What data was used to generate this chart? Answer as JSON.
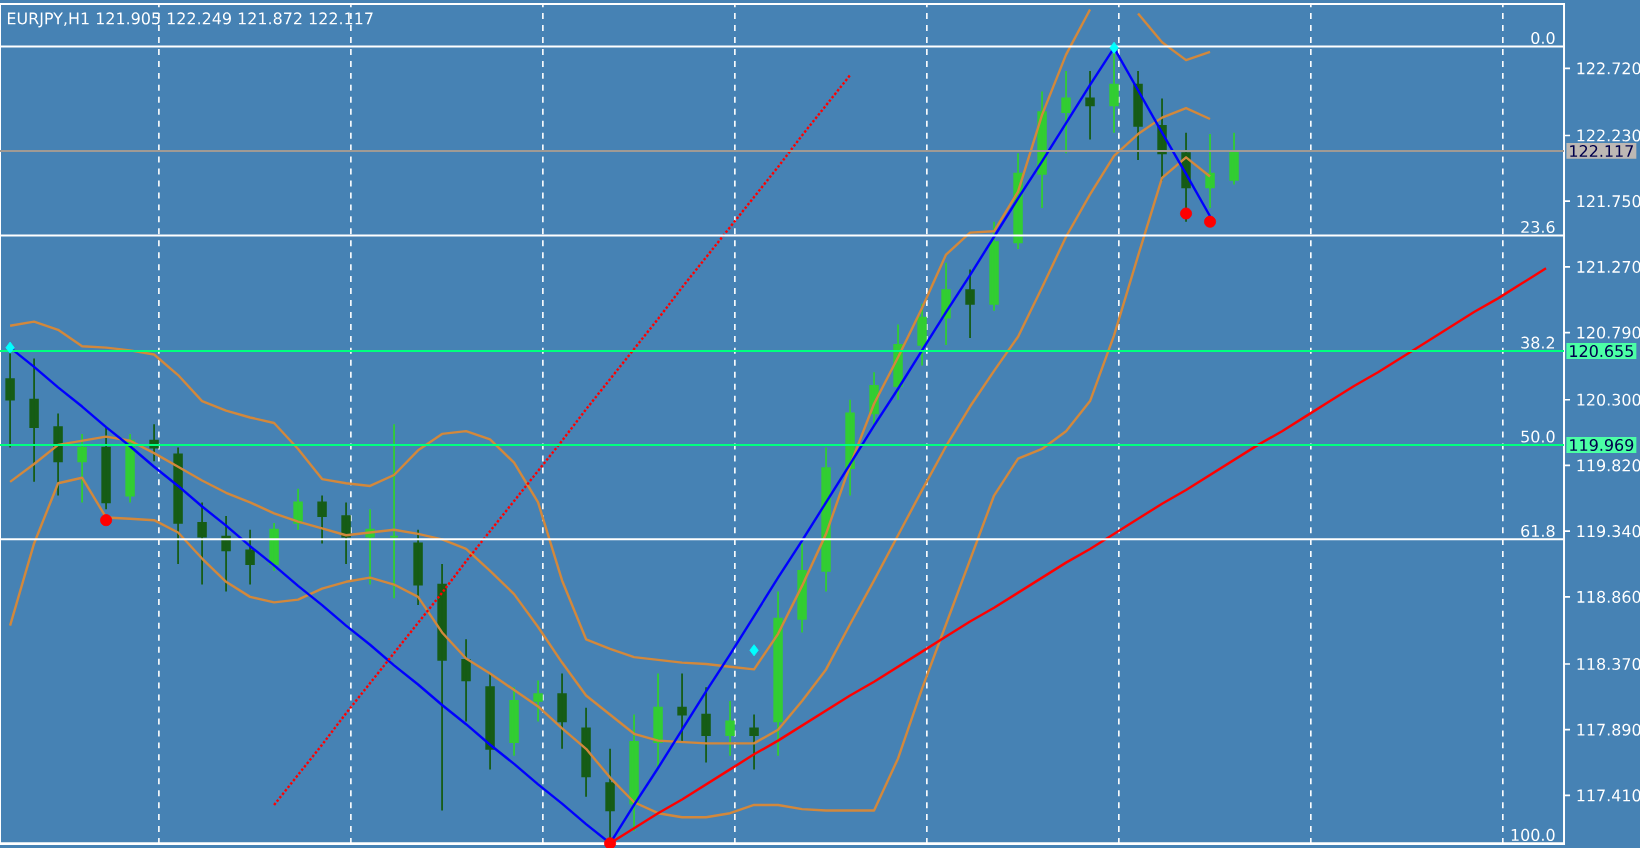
{
  "chart_data": {
    "type": "candlestick",
    "title": "EURJPY,H1  121.905 122.249 121.872 122.117",
    "colors": [
      "#165c16",
      "#165c16",
      "#165c16",
      "#32cd32",
      "#165c16",
      "#32cd32",
      "#165c16",
      "#165c16",
      "#165c16",
      "#165c16",
      "#165c16",
      "#32cd32",
      "#32cd32",
      "#165c16",
      "#165c16",
      "#32cd32",
      "#32cd32",
      "#165c16",
      "#165c16",
      "#165c16",
      "#165c16",
      "#32cd32",
      "#32cd32",
      "#165c16",
      "#165c16",
      "#165c16",
      "#32cd32",
      "#32cd32",
      "#165c16",
      "#165c16",
      "#32cd32",
      "#165c16",
      "#32cd32",
      "#32cd32",
      "#32cd32",
      "#32cd32",
      "#32cd32",
      "#32cd32",
      "#32cd32",
      "#32cd32",
      "#165c16",
      "#32cd32",
      "#32cd32",
      "#32cd32",
      "#32cd32",
      "#165c16",
      "#32cd32",
      "#165c16",
      "#165c16",
      "#165c16",
      "#32cd32",
      "#32cd32",
      null,
      null,
      null,
      null,
      null,
      null,
      null,
      null,
      null,
      null,
      null,
      null,
      null
    ],
    "categories": [
      null,
      null,
      null,
      null,
      null,
      null,
      null,
      null,
      null,
      null,
      null,
      null,
      null,
      null,
      null,
      null,
      null,
      null,
      null,
      null,
      null,
      null,
      null,
      null,
      null,
      null,
      null,
      null,
      null,
      null,
      null,
      null,
      null,
      null,
      null,
      null,
      null,
      null,
      null,
      null,
      null,
      null,
      null,
      null,
      null,
      null,
      null,
      null,
      null,
      null,
      null,
      null,
      null,
      null,
      null,
      null,
      null,
      null,
      null,
      null,
      null,
      null,
      null,
      null,
      null
    ],
    "ohlc": [
      [
        120.45,
        120.69,
        119.95,
        120.3
      ],
      [
        120.3,
        120.6,
        119.7,
        120.1
      ],
      [
        120.1,
        120.2,
        119.6,
        119.85
      ],
      [
        119.85,
        120.05,
        119.55,
        119.95
      ],
      [
        119.95,
        120.1,
        119.5,
        119.55
      ],
      [
        119.6,
        120.05,
        119.55,
        120.0
      ],
      [
        120.0,
        120.12,
        119.85,
        119.95
      ],
      [
        119.9,
        119.95,
        119.1,
        119.4
      ],
      [
        119.4,
        119.55,
        118.95,
        119.3
      ],
      [
        119.3,
        119.45,
        118.9,
        119.2
      ],
      [
        119.2,
        119.35,
        118.95,
        119.1
      ],
      [
        119.1,
        119.4,
        119.05,
        119.35
      ],
      [
        119.4,
        119.65,
        119.35,
        119.55
      ],
      [
        119.55,
        119.6,
        119.25,
        119.45
      ],
      [
        119.45,
        119.55,
        119.1,
        119.3
      ],
      [
        119.3,
        119.5,
        118.95,
        119.35
      ],
      [
        119.3,
        120.12,
        118.85,
        119.3
      ],
      [
        119.25,
        119.35,
        118.8,
        118.95
      ],
      [
        118.95,
        119.1,
        117.3,
        118.4
      ],
      [
        118.4,
        118.55,
        117.95,
        118.25
      ],
      [
        118.2,
        118.3,
        117.6,
        117.75
      ],
      [
        117.8,
        118.2,
        117.7,
        118.1
      ],
      [
        118.1,
        118.25,
        117.95,
        118.15
      ],
      [
        118.15,
        118.3,
        117.75,
        117.95
      ],
      [
        117.9,
        118.05,
        117.4,
        117.55
      ],
      [
        117.5,
        117.75,
        117.06,
        117.3
      ],
      [
        117.35,
        118.0,
        117.15,
        117.8
      ],
      [
        117.8,
        118.3,
        117.6,
        118.05
      ],
      [
        118.05,
        118.3,
        117.8,
        118.0
      ],
      [
        118.0,
        118.2,
        117.65,
        117.85
      ],
      [
        117.85,
        118.1,
        117.7,
        117.95
      ],
      [
        117.9,
        118.0,
        117.6,
        117.85
      ],
      [
        117.95,
        118.9,
        117.7,
        118.7
      ],
      [
        118.7,
        119.25,
        118.6,
        119.05
      ],
      [
        119.05,
        119.95,
        118.9,
        119.8
      ],
      [
        119.8,
        120.3,
        119.6,
        120.2
      ],
      [
        120.2,
        120.5,
        120.1,
        120.4
      ],
      [
        120.4,
        120.85,
        120.3,
        120.7
      ],
      [
        120.7,
        121.0,
        120.55,
        120.9
      ],
      [
        120.9,
        121.3,
        120.7,
        121.1
      ],
      [
        121.1,
        121.25,
        120.75,
        121.0
      ],
      [
        121.0,
        121.6,
        120.95,
        121.45
      ],
      [
        121.45,
        122.1,
        121.4,
        121.95
      ],
      [
        121.95,
        122.55,
        121.7,
        122.4
      ],
      [
        122.4,
        122.7,
        122.1,
        122.5
      ],
      [
        122.5,
        122.7,
        122.2,
        122.45
      ],
      [
        122.45,
        122.87,
        122.25,
        122.6
      ],
      [
        122.6,
        122.7,
        122.05,
        122.3
      ],
      [
        122.3,
        122.5,
        121.9,
        122.1
      ],
      [
        122.1,
        122.25,
        121.6,
        121.85
      ],
      [
        121.85,
        122.24,
        121.7,
        121.95
      ],
      [
        121.905,
        122.249,
        121.872,
        122.117
      ],
      null,
      null,
      null,
      null,
      null,
      null,
      null,
      null,
      null,
      null,
      null,
      null,
      null
    ],
    "series": [
      {
        "type": "line",
        "color": "#d2883c",
        "values": [
          120.84,
          120.87,
          120.81,
          120.69,
          120.68,
          120.66,
          120.63,
          120.48,
          120.29,
          120.22,
          120.17,
          120.13,
          119.94,
          119.72,
          119.69,
          119.67,
          119.75,
          119.93,
          120.05,
          120.07,
          120.01,
          119.84,
          119.55,
          118.98,
          118.55,
          118.48,
          118.42,
          118.4,
          118.38,
          118.37,
          118.35,
          118.33,
          118.59,
          118.94,
          119.32,
          119.82,
          120.27,
          120.61,
          120.97,
          121.36,
          121.52,
          121.53,
          121.82,
          122.38,
          122.82,
          123.15,
          null,
          123.12,
          122.91,
          122.78,
          122.84,
          null,
          null,
          null,
          null,
          null,
          null,
          null,
          null,
          null,
          null,
          null,
          null,
          null,
          null
        ]
      },
      {
        "type": "line",
        "color": "#d2883c",
        "values": [
          119.7,
          119.83,
          119.97,
          120.0,
          120.03,
          120.0,
          119.91,
          119.81,
          119.71,
          119.62,
          119.55,
          119.47,
          119.41,
          119.36,
          119.31,
          119.33,
          119.35,
          119.32,
          119.28,
          119.21,
          119.05,
          118.88,
          118.64,
          118.38,
          118.14,
          118.0,
          117.86,
          117.81,
          117.8,
          117.79,
          117.79,
          117.79,
          117.89,
          118.1,
          118.33,
          118.66,
          118.98,
          119.31,
          119.64,
          119.96,
          120.25,
          120.51,
          120.76,
          121.12,
          121.49,
          121.8,
          122.08,
          122.24,
          122.36,
          122.43,
          122.35,
          null,
          null,
          null,
          null,
          null,
          null,
          null,
          null,
          null,
          null,
          null,
          null,
          null,
          null
        ]
      },
      {
        "type": "line",
        "color": "#d2883c",
        "values": [
          118.65,
          119.25,
          119.69,
          119.73,
          119.44,
          119.43,
          119.42,
          119.33,
          119.14,
          118.97,
          118.86,
          118.82,
          118.84,
          118.92,
          118.97,
          119.0,
          118.95,
          118.86,
          118.6,
          118.41,
          118.3,
          118.18,
          118.06,
          117.9,
          117.75,
          117.54,
          117.36,
          117.28,
          117.25,
          117.25,
          117.28,
          117.34,
          117.34,
          117.31,
          117.3,
          117.3,
          117.3,
          117.68,
          118.19,
          118.66,
          119.13,
          119.6,
          119.87,
          119.94,
          120.07,
          120.29,
          120.77,
          121.35,
          121.92,
          122.07,
          121.93,
          null,
          null,
          null,
          null,
          null,
          null,
          null,
          null,
          null,
          null,
          null,
          null,
          null,
          null
        ]
      },
      {
        "type": "line",
        "color": "#0000ff",
        "values": [
          120.68,
          120.54,
          120.39,
          120.25,
          120.1,
          119.96,
          119.81,
          119.67,
          119.52,
          119.38,
          119.23,
          119.09,
          118.94,
          118.8,
          118.65,
          118.51,
          118.36,
          118.22,
          118.07,
          117.93,
          117.78,
          117.64,
          117.49,
          117.35,
          117.2,
          117.06,
          117.34,
          117.61,
          117.89,
          118.17,
          118.44,
          118.72,
          119.0,
          119.27,
          119.55,
          119.83,
          120.11,
          120.38,
          120.66,
          120.94,
          121.21,
          121.49,
          121.77,
          122.04,
          122.32,
          122.6,
          122.87,
          122.56,
          122.25,
          121.95,
          121.64,
          null,
          null,
          null,
          null,
          null,
          null,
          null,
          null,
          null,
          null,
          null,
          null,
          null,
          null
        ]
      },
      {
        "type": "line",
        "color": "#ff0000",
        "values": [
          null,
          null,
          null,
          null,
          null,
          null,
          null,
          null,
          null,
          null,
          null,
          null,
          null,
          null,
          null,
          null,
          null,
          null,
          null,
          null,
          null,
          null,
          null,
          null,
          null,
          117.06,
          117.17,
          117.28,
          117.38,
          117.49,
          117.6,
          117.71,
          117.81,
          117.92,
          118.03,
          118.14,
          118.24,
          118.35,
          118.46,
          118.57,
          118.68,
          118.78,
          118.89,
          119.0,
          119.11,
          119.21,
          119.32,
          119.43,
          119.54,
          119.64,
          119.75,
          119.86,
          119.97,
          120.07,
          120.18,
          120.29,
          120.4,
          120.5,
          120.61,
          120.72,
          120.83,
          120.94,
          121.04,
          121.15,
          121.26
        ]
      },
      {
        "type": "line",
        "color": "#ff0000",
        "line_style": "dotted",
        "values": [
          null,
          null,
          null,
          null,
          null,
          null,
          null,
          null,
          null,
          null,
          null,
          117.34,
          117.56,
          117.78,
          118.01,
          118.23,
          118.45,
          118.67,
          118.89,
          119.12,
          119.34,
          119.56,
          119.78,
          120.0,
          120.23,
          120.45,
          120.67,
          120.89,
          121.12,
          121.34,
          121.56,
          121.78,
          122.0,
          122.23,
          122.45,
          122.67,
          null,
          null,
          null,
          null,
          null,
          null,
          null,
          null,
          null,
          null,
          null,
          null,
          null,
          null,
          null,
          null,
          null,
          null,
          null,
          null,
          null,
          null,
          null,
          null,
          null,
          null,
          null,
          null,
          null
        ]
      },
      {
        "type": "scatter",
        "color": "#00ffff",
        "marker": "diamond",
        "values": [
          120.68,
          null,
          null,
          null,
          null,
          null,
          null,
          null,
          null,
          null,
          null,
          null,
          null,
          null,
          null,
          null,
          null,
          null,
          null,
          null,
          null,
          null,
          null,
          null,
          null,
          null,
          null,
          null,
          null,
          null,
          null,
          118.47,
          null,
          null,
          null,
          null,
          null,
          null,
          null,
          null,
          null,
          null,
          null,
          null,
          null,
          null,
          122.87,
          null,
          null,
          null,
          null,
          null,
          null,
          null,
          null,
          null,
          null,
          null,
          null,
          null,
          null,
          null,
          null,
          null,
          null
        ]
      },
      {
        "type": "scatter",
        "color": "#ff0000",
        "marker": "circle",
        "values": [
          null,
          null,
          null,
          null,
          119.42,
          null,
          null,
          null,
          null,
          null,
          null,
          null,
          null,
          null,
          null,
          null,
          null,
          null,
          null,
          null,
          null,
          null,
          null,
          null,
          null,
          117.06,
          null,
          null,
          null,
          null,
          null,
          null,
          null,
          null,
          null,
          null,
          null,
          null,
          null,
          null,
          null,
          null,
          null,
          null,
          null,
          null,
          null,
          null,
          null,
          121.66,
          121.6,
          null,
          null,
          null,
          null,
          null,
          null,
          null,
          null,
          null,
          null,
          null,
          null,
          null,
          null
        ]
      }
    ],
    "ylim": [
      117.055,
      123.19
    ],
    "yticks": [
      {
        "value": 117.41,
        "label": "117.410"
      },
      {
        "value": 117.89,
        "label": "117.890"
      },
      {
        "value": 118.37,
        "label": "118.370"
      },
      {
        "value": 118.86,
        "label": "118.860"
      },
      {
        "value": 119.34,
        "label": "119.340"
      },
      {
        "value": 119.82,
        "label": "119.820"
      },
      {
        "value": 120.3,
        "label": "120.300"
      },
      {
        "value": 120.79,
        "label": "120.790"
      },
      {
        "value": 121.27,
        "label": "121.270"
      },
      {
        "value": 121.75,
        "label": "121.750"
      },
      {
        "value": 122.23,
        "label": "122.230"
      },
      {
        "value": 122.72,
        "label": "122.720"
      }
    ],
    "grid": "x",
    "ref_lines": [
      {
        "axis": "y",
        "value": 122.88,
        "color": "#ffffff"
      },
      {
        "axis": "y",
        "value": 121.5,
        "color": "#ffffff"
      },
      {
        "axis": "y",
        "value": 120.655,
        "label": "120.655",
        "color": "#00ff7f"
      },
      {
        "axis": "y",
        "value": 119.969,
        "label": "119.969",
        "color": "#00ff7f"
      },
      {
        "axis": "y",
        "value": 119.28,
        "color": "#ffffff"
      },
      {
        "axis": "y",
        "value": 117.06,
        "color": "#ffffff"
      },
      {
        "axis": "y",
        "value": 122.117,
        "label": "122.117",
        "color": "#a09a94"
      }
    ],
    "annotations": [
      {
        "text": "0.0",
        "y": 122.88
      },
      {
        "text": "23.6",
        "y": 121.5
      },
      {
        "text": "38.2",
        "y": 120.655
      },
      {
        "text": "50.0",
        "y": 119.969
      },
      {
        "text": "61.8",
        "y": 119.28
      },
      {
        "text": "100.0",
        "y": 117.06
      }
    ]
  }
}
